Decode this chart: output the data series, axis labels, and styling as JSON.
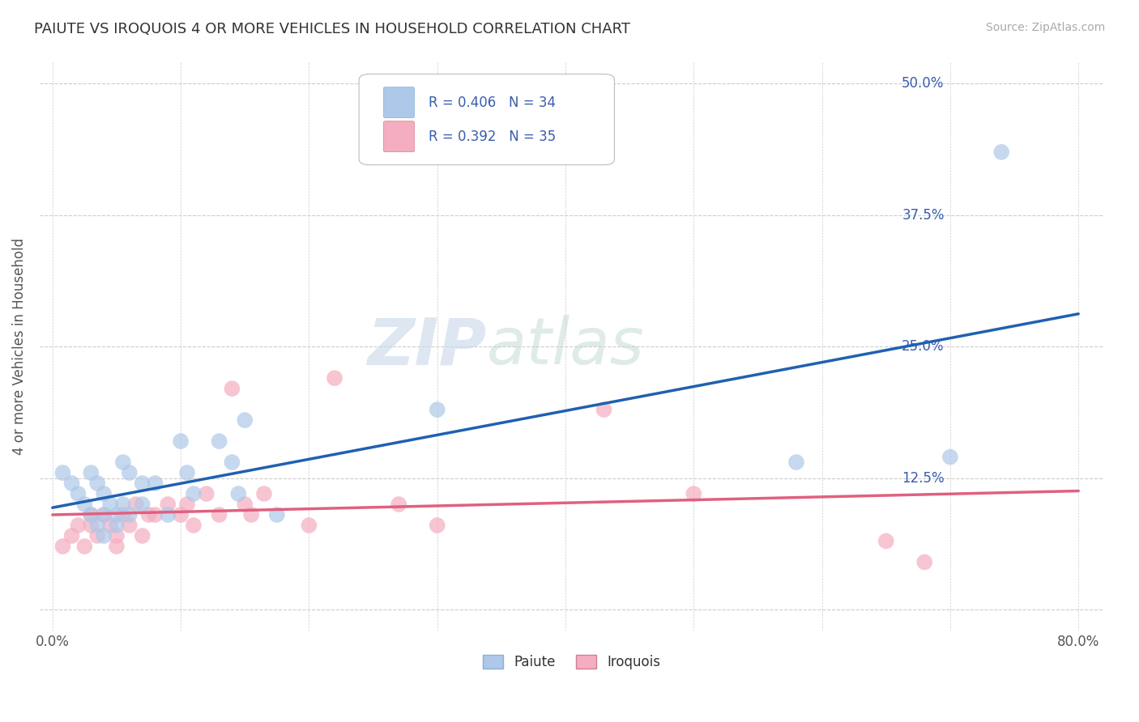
{
  "title": "PAIUTE VS IROQUOIS 4 OR MORE VEHICLES IN HOUSEHOLD CORRELATION CHART",
  "source_text": "Source: ZipAtlas.com",
  "ylabel": "4 or more Vehicles in Household",
  "xlim": [
    -0.01,
    0.82
  ],
  "ylim": [
    -0.02,
    0.52
  ],
  "xticks": [
    0.0,
    0.1,
    0.2,
    0.3,
    0.4,
    0.5,
    0.6,
    0.7,
    0.8
  ],
  "xticklabels": [
    "0.0%",
    "",
    "",
    "",
    "",
    "",
    "",
    "",
    "80.0%"
  ],
  "yticks": [
    0.0,
    0.125,
    0.25,
    0.375,
    0.5
  ],
  "yticklabels": [
    "",
    "12.5%",
    "25.0%",
    "37.5%",
    "50.0%"
  ],
  "paiute_R": 0.406,
  "paiute_N": 34,
  "iroquois_R": 0.392,
  "iroquois_N": 35,
  "paiute_color": "#adc8e8",
  "iroquois_color": "#f5adc0",
  "paiute_line_color": "#2060b0",
  "iroquois_line_color": "#e06080",
  "legend_text_color": "#3a5dae",
  "watermark_left": "ZIP",
  "watermark_right": "atlas",
  "background_color": "#ffffff",
  "grid_color": "#cccccc",
  "paiute_x": [
    0.008,
    0.015,
    0.02,
    0.025,
    0.03,
    0.03,
    0.035,
    0.035,
    0.04,
    0.04,
    0.04,
    0.045,
    0.05,
    0.05,
    0.055,
    0.055,
    0.06,
    0.06,
    0.07,
    0.07,
    0.08,
    0.09,
    0.1,
    0.105,
    0.11,
    0.13,
    0.14,
    0.145,
    0.15,
    0.175,
    0.3,
    0.58,
    0.7,
    0.74
  ],
  "paiute_y": [
    0.13,
    0.12,
    0.11,
    0.1,
    0.13,
    0.09,
    0.12,
    0.08,
    0.11,
    0.09,
    0.07,
    0.1,
    0.09,
    0.08,
    0.14,
    0.1,
    0.13,
    0.09,
    0.12,
    0.1,
    0.12,
    0.09,
    0.16,
    0.13,
    0.11,
    0.16,
    0.14,
    0.11,
    0.18,
    0.09,
    0.19,
    0.14,
    0.145,
    0.435
  ],
  "iroquois_x": [
    0.008,
    0.015,
    0.02,
    0.025,
    0.03,
    0.03,
    0.035,
    0.04,
    0.045,
    0.05,
    0.05,
    0.055,
    0.06,
    0.065,
    0.07,
    0.075,
    0.08,
    0.09,
    0.1,
    0.105,
    0.11,
    0.12,
    0.13,
    0.14,
    0.15,
    0.155,
    0.165,
    0.2,
    0.22,
    0.27,
    0.3,
    0.43,
    0.5,
    0.65,
    0.68
  ],
  "iroquois_y": [
    0.06,
    0.07,
    0.08,
    0.06,
    0.09,
    0.08,
    0.07,
    0.09,
    0.08,
    0.07,
    0.06,
    0.09,
    0.08,
    0.1,
    0.07,
    0.09,
    0.09,
    0.1,
    0.09,
    0.1,
    0.08,
    0.11,
    0.09,
    0.21,
    0.1,
    0.09,
    0.11,
    0.08,
    0.22,
    0.1,
    0.08,
    0.19,
    0.11,
    0.065,
    0.045
  ]
}
